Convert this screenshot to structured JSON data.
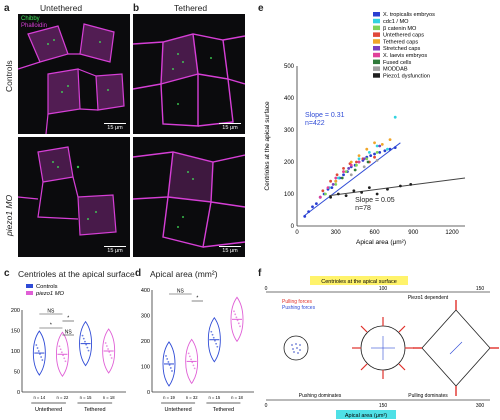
{
  "panels": {
    "a": {
      "letter": "a",
      "title": "Untethered"
    },
    "b": {
      "letter": "b",
      "title": "Tethered"
    },
    "e": {
      "letter": "e"
    },
    "c": {
      "letter": "c",
      "title": "Centrioles at the apical surface"
    },
    "d": {
      "letter": "d",
      "title": "Apical area (mm²)"
    },
    "f": {
      "letter": "f"
    }
  },
  "image_labels": {
    "stain_chibby": "Chibby",
    "stain_phalloidin": "Phalloidin",
    "row_controls": "Controls",
    "row_piezo1": "piezo1 MO",
    "scalebar": "15 μm"
  },
  "colors": {
    "magenta": "#d63fd6",
    "green": "#43e85a",
    "blue": "#2f4bd6",
    "pink": "#e05fd6"
  },
  "chart_data": [
    {
      "panel": "e",
      "type": "scatter",
      "xlabel": "Apical area (μm²)",
      "ylabel": "Centrioles at the apical surface",
      "xlim": [
        0,
        1300
      ],
      "ylim": [
        0,
        500
      ],
      "xticks": [
        0,
        300,
        600,
        900,
        1200
      ],
      "yticks": [
        0,
        100,
        200,
        300,
        400,
        500
      ],
      "annotations": [
        {
          "text": "Slope = 0.31",
          "color": "#2f4bd6"
        },
        {
          "text": "n=422",
          "color": "#2f4bd6"
        },
        {
          "text": "Slope = 0.05",
          "color": "#222222"
        },
        {
          "text": "n=78",
          "color": "#222222"
        }
      ],
      "legend": [
        {
          "label": "X. tropicalis embryos",
          "color": "#2a3fd1"
        },
        {
          "label": "cdc1 / MO",
          "color": "#32d3e0"
        },
        {
          "label": "β catenin MO",
          "color": "#7fd35a"
        },
        {
          "label": "Untethered caps",
          "color": "#e0483a"
        },
        {
          "label": "Tethered caps",
          "color": "#f0a62a"
        },
        {
          "label": "Stretched caps",
          "color": "#7a3fc0"
        },
        {
          "label": "X. laevis embryos",
          "color": "#e0409a"
        },
        {
          "label": "Fused cells",
          "color": "#2f7a3a"
        },
        {
          "label": "MODDAB",
          "color": "#a0a0a0"
        },
        {
          "label": "Piezo1 dysfunction",
          "color": "#202020"
        }
      ],
      "series": [
        {
          "name": "X. tropicalis embryos",
          "x": [
            60,
            90,
            120,
            150,
            180,
            210,
            240,
            270,
            300,
            330,
            360,
            390,
            420,
            450,
            480,
            510,
            540,
            570,
            600,
            640,
            680,
            720,
            760
          ],
          "y": [
            30,
            45,
            60,
            70,
            90,
            100,
            115,
            120,
            140,
            150,
            160,
            170,
            185,
            190,
            200,
            205,
            215,
            220,
            225,
            230,
            235,
            240,
            245
          ]
        },
        {
          "name": "cdc1 / MO",
          "x": [
            250,
            320,
            400,
            480,
            560,
            620,
            700,
            760
          ],
          "y": [
            120,
            150,
            180,
            210,
            230,
            250,
            240,
            340
          ]
        },
        {
          "name": "β catenin MO",
          "x": [
            220,
            300,
            380,
            460,
            540,
            620
          ],
          "y": [
            100,
            130,
            170,
            190,
            210,
            230
          ]
        },
        {
          "name": "Untethered caps",
          "x": [
            200,
            260,
            310,
            360,
            410,
            460,
            510,
            560,
            600
          ],
          "y": [
            110,
            140,
            160,
            180,
            195,
            200,
            210,
            200,
            215
          ]
        },
        {
          "name": "Tethered caps",
          "x": [
            300,
            360,
            420,
            480,
            540,
            600,
            660,
            720
          ],
          "y": [
            140,
            170,
            200,
            220,
            240,
            260,
            255,
            270
          ]
        },
        {
          "name": "Stretched caps",
          "x": [
            280,
            400,
            520,
            640
          ],
          "y": [
            130,
            180,
            210,
            250
          ]
        },
        {
          "name": "X. laevis embryos",
          "x": [
            180,
            240,
            300,
            360,
            420,
            480
          ],
          "y": [
            90,
            120,
            150,
            170,
            190,
            200
          ]
        },
        {
          "name": "Fused cells",
          "x": [
            350,
            450,
            550
          ],
          "y": [
            150,
            175,
            200
          ]
        },
        {
          "name": "MODDAB",
          "x": [
            420,
            520,
            620
          ],
          "y": [
            160,
            185,
            205
          ]
        },
        {
          "name": "Piezo1 dysfunction",
          "x": [
            260,
            320,
            380,
            440,
            500,
            560,
            620,
            700,
            800,
            880
          ],
          "y": [
            90,
            100,
            95,
            110,
            105,
            120,
            100,
            115,
            125,
            130
          ]
        }
      ],
      "fits": [
        {
          "x": [
            50,
            800
          ],
          "y": [
            30,
            260
          ],
          "color": "#2f4bd6"
        },
        {
          "x": [
            250,
            1300
          ],
          "y": [
            95,
            150
          ],
          "color": "#444444"
        }
      ]
    },
    {
      "panel": "c",
      "type": "violin",
      "ylim": [
        0,
        200
      ],
      "yticks": [
        0,
        50,
        100,
        150,
        200
      ],
      "legend": [
        {
          "label": "Controls",
          "color": "#2f4bd6"
        },
        {
          "label": "piezo1 MO",
          "color": "#e05fd6"
        }
      ],
      "groups": [
        {
          "group": "Untethered",
          "label": "Controls",
          "median": 95,
          "color": "#2f4bd6",
          "n": "n = 14"
        },
        {
          "group": "Untethered",
          "label": "piezo1 MO",
          "median": 92,
          "color": "#e05fd6",
          "n": "n = 22"
        },
        {
          "group": "Tethered",
          "label": "Controls",
          "median": 118,
          "color": "#2f4bd6",
          "n": "n = 15"
        },
        {
          "group": "Tethered",
          "label": "piezo1 MO",
          "median": 100,
          "color": "#e05fd6",
          "n": "n = 18"
        }
      ],
      "sig": [
        "NS",
        "*",
        "*",
        "NS"
      ],
      "xgroups": [
        "Untethered",
        "Tethered"
      ]
    },
    {
      "panel": "d",
      "type": "violin",
      "ylim": [
        0,
        400
      ],
      "yticks": [
        0,
        100,
        200,
        300,
        400
      ],
      "groups": [
        {
          "group": "Untethered",
          "label": "Controls",
          "median": 110,
          "color": "#2f4bd6",
          "n": "n = 19"
        },
        {
          "group": "Untethered",
          "label": "piezo1 MO",
          "median": 120,
          "color": "#e05fd6",
          "n": "n = 32"
        },
        {
          "group": "Tethered",
          "label": "Controls",
          "median": 205,
          "color": "#2f4bd6",
          "n": "n = 15"
        },
        {
          "group": "Tethered",
          "label": "piezo1 MO",
          "median": 285,
          "color": "#e05fd6",
          "n": "n = 18"
        }
      ],
      "sig": [
        "NS",
        "*"
      ],
      "xgroups": [
        "Untethered",
        "Tethered"
      ]
    }
  ],
  "schematic": {
    "top_label": "Centrioles at the apical surface",
    "bottom_label": "Apical area (μm²)",
    "pulling_forces": "Pulling forces",
    "pushing_forces": "Pushing forces",
    "piezo1_dependent": "Piezo1 dependent",
    "pushing_dominates": "Pushing dominates",
    "pulling_dominates": "Pulling dominates",
    "top_ticks": [
      "0",
      "100",
      "150"
    ],
    "bottom_ticks": [
      "0",
      "150",
      "300"
    ]
  }
}
